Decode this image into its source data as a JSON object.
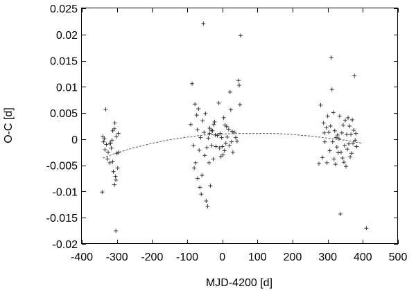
{
  "chart_data": {
    "type": "scatter",
    "xlabel": "MJD-4200 [d]",
    "ylabel": "O-C [d]",
    "xlim": [
      -400,
      500
    ],
    "ylim": [
      -0.02,
      0.025
    ],
    "xticks": [
      -400,
      -300,
      -200,
      -100,
      0,
      100,
      200,
      300,
      400,
      500
    ],
    "xtick_labels": [
      "-400",
      "-300",
      "-200",
      "-100",
      "0",
      "100",
      "200",
      "300",
      "400",
      "500"
    ],
    "yticks": [
      -0.02,
      -0.015,
      -0.01,
      -0.005,
      0,
      0.005,
      0.01,
      0.015,
      0.02,
      0.025
    ],
    "ytick_labels": [
      "-0.02",
      "-0.015",
      "-0.01",
      "-0.005",
      "0",
      "0.005",
      "0.01",
      "0.015",
      "0.02",
      "0.025"
    ],
    "grid": false,
    "legend": "none",
    "marker": "plus",
    "series": [
      {
        "points": [
          [
            -340,
            0.0005
          ],
          [
            -338,
            -0.0005
          ],
          [
            -336,
            0.0001
          ],
          [
            -334,
            -0.002
          ],
          [
            -332,
            0.0057
          ],
          [
            -330,
            -0.001
          ],
          [
            -327,
            -0.0038
          ],
          [
            -325,
            -0.0025
          ],
          [
            -320,
            -0.0045
          ],
          [
            -318,
            -0.0008
          ],
          [
            -316,
            -0.0017
          ],
          [
            -314,
            -0.0002
          ],
          [
            -312,
            -0.0043
          ],
          [
            -310,
            -0.0062
          ],
          [
            -308,
            0.002
          ],
          [
            -306,
            0.0031
          ],
          [
            -304,
            -0.0071
          ],
          [
            -303,
            -0.0078
          ],
          [
            -302,
            0.0005
          ],
          [
            -300,
            -0.0027
          ],
          [
            -298,
            -0.0055
          ],
          [
            -296,
            0.0011
          ],
          [
            -295,
            -0.0025
          ],
          [
            -342,
            -0.0101
          ],
          [
            -307,
            -0.0087
          ],
          [
            -303,
            -0.0175
          ],
          [
            -312,
            0.0016
          ],
          [
            -320,
            -0.0008
          ],
          [
            -90,
            0.0028
          ],
          [
            -86,
            0.0106
          ],
          [
            -82,
            -0.0012
          ],
          [
            -80,
            -0.0055
          ],
          [
            -78,
            0.0067
          ],
          [
            -76,
            -0.0045
          ],
          [
            -73,
            0.0046
          ],
          [
            -71,
            0.0018
          ],
          [
            -68,
            0.0058
          ],
          [
            -66,
            -0.0021
          ],
          [
            -64,
            -0.0092
          ],
          [
            -62,
            0.0003
          ],
          [
            -60,
            -0.0105
          ],
          [
            -58,
            -0.0069
          ],
          [
            -56,
            0.0035
          ],
          [
            -54,
            0.0221
          ],
          [
            -52,
            0.0013
          ],
          [
            -50,
            -0.0031
          ],
          [
            -48,
            0.0049
          ],
          [
            -46,
            -0.0118
          ],
          [
            -44,
            -0.0016
          ],
          [
            -42,
            -0.0128
          ],
          [
            -40,
            0.0002
          ],
          [
            -38,
            -0.0045
          ],
          [
            -36,
            0.0021
          ],
          [
            -34,
            -0.0089
          ],
          [
            -32,
            0.0017
          ],
          [
            -30,
            -0.0012
          ],
          [
            -28,
            0.0016
          ],
          [
            -26,
            -0.0038
          ],
          [
            -24,
            0.0028
          ],
          [
            -20,
            0.0008
          ],
          [
            -18,
            -0.0014
          ],
          [
            -14,
            0.0007
          ],
          [
            -10,
            0.0069
          ],
          [
            -8,
            -0.0017
          ],
          [
            -6,
            0.0011
          ],
          [
            -4,
            -0.0033
          ],
          [
            -2,
            0.0003
          ],
          [
            2,
            -0.003
          ],
          [
            4,
            0.0041
          ],
          [
            6,
            -0.0022
          ],
          [
            8,
            0.0027
          ],
          [
            10,
            -0.0008
          ],
          [
            14,
            0.0004
          ],
          [
            18,
            0.0019
          ],
          [
            20,
            -0.0012
          ],
          [
            22,
            0.009
          ],
          [
            24,
            0.0056
          ],
          [
            26,
            -0.0005
          ],
          [
            28,
            0.0015
          ],
          [
            30,
            -0.0025
          ],
          [
            34,
            0.0013
          ],
          [
            38,
            0.0003
          ],
          [
            42,
            -0.0004
          ],
          [
            46,
            0.0112
          ],
          [
            48,
            0.0103
          ],
          [
            50,
            0.0066
          ],
          [
            52,
            0.0198
          ],
          [
            -70,
            -0.0075
          ],
          [
            -36,
            0.0011
          ],
          [
            -22,
            0.0033
          ],
          [
            0,
            -0.0014
          ],
          [
            12,
            0.0024
          ],
          [
            275,
            -0.0047
          ],
          [
            280,
            0.0065
          ],
          [
            285,
            -0.0035
          ],
          [
            288,
            0.0031
          ],
          [
            290,
            0.0012
          ],
          [
            292,
            -0.0005
          ],
          [
            296,
            0.0022
          ],
          [
            298,
            -0.0045
          ],
          [
            300,
            0.0044
          ],
          [
            303,
            0.0013
          ],
          [
            306,
            -0.0022
          ],
          [
            308,
            0.0025
          ],
          [
            310,
            0.0156
          ],
          [
            312,
            0.0095
          ],
          [
            314,
            -0.0005
          ],
          [
            316,
            0.0051
          ],
          [
            318,
            -0.0038
          ],
          [
            320,
            0.0016
          ],
          [
            322,
            -0.0048
          ],
          [
            324,
            0.0003
          ],
          [
            326,
            -0.0015
          ],
          [
            328,
            0.0008
          ],
          [
            330,
            -0.0026
          ],
          [
            332,
            0.0001
          ],
          [
            334,
            0.0044
          ],
          [
            336,
            -0.0143
          ],
          [
            338,
            -0.0025
          ],
          [
            340,
            0.0012
          ],
          [
            342,
            -0.0036
          ],
          [
            344,
            0.0027
          ],
          [
            346,
            -0.0044
          ],
          [
            348,
            -0.0012
          ],
          [
            350,
            0.0036
          ],
          [
            352,
            -0.0052
          ],
          [
            354,
            0.0009
          ],
          [
            356,
            -0.0019
          ],
          [
            358,
            0.0041
          ],
          [
            360,
            -0.0009
          ],
          [
            362,
            0.0025
          ],
          [
            364,
            -0.0034
          ],
          [
            366,
            0.0009
          ],
          [
            368,
            -0.0027
          ],
          [
            370,
            0.0037
          ],
          [
            372,
            -0.0008
          ],
          [
            374,
            0.0017
          ],
          [
            376,
            0.0121
          ],
          [
            378,
            -0.0002
          ],
          [
            380,
            0.0011
          ],
          [
            382,
            -0.0014
          ],
          [
            410,
            -0.017
          ]
        ]
      },
      {
        "type": "line",
        "style": "dashed",
        "x": [
          -340,
          -300,
          -250,
          -200,
          -150,
          -100,
          -50,
          0,
          50,
          100,
          150,
          200,
          250,
          300,
          350,
          400
        ],
        "y": [
          -0.0036,
          -0.0026,
          -0.0016,
          -0.0008,
          -0.0001,
          0.0004,
          0.0008,
          0.001,
          0.0011,
          0.0011,
          0.0011,
          0.0009,
          0.0006,
          0.0002,
          -0.0002,
          -0.0008
        ]
      }
    ]
  }
}
